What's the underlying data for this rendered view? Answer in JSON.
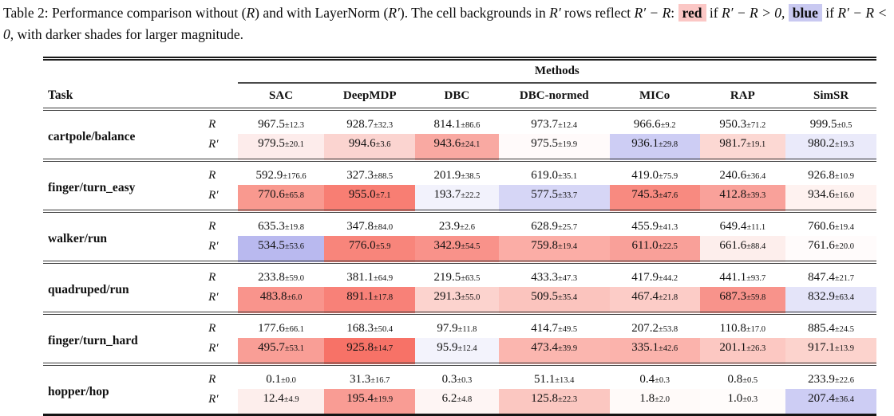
{
  "caption": {
    "segments": [
      {
        "t": "Table 2: ",
        "name": "caption-label"
      },
      {
        "t": "Performance comparison without ("
      },
      {
        "t": "R",
        "i": 1
      },
      {
        "t": ") and with LayerNorm ("
      },
      {
        "t": "R′",
        "i": 1
      },
      {
        "t": "). The cell backgrounds in "
      },
      {
        "t": "R′",
        "i": 1
      },
      {
        "t": " rows reflect "
      },
      {
        "t": "R′ − R",
        "i": 1
      },
      {
        "t": ":  "
      },
      {
        "t": "red",
        "b": 1,
        "hl": "#fbc7c5",
        "name": "red-legend-swatch"
      },
      {
        "t": " if "
      },
      {
        "t": "R′ − R > 0",
        "i": 1
      },
      {
        "t": ",  "
      },
      {
        "t": "blue",
        "b": 1,
        "hl": "#c9c9f1",
        "name": "blue-legend-swatch"
      },
      {
        "t": " if "
      },
      {
        "t": "R′ − R < 0",
        "i": 1
      },
      {
        "t": ", with darker shades for larger magnitude."
      }
    ]
  },
  "table": {
    "methods_label": "Methods",
    "task_label": "Task",
    "row_labels": [
      "R",
      "R′"
    ],
    "methods": [
      "SAC",
      "DeepMDP",
      "DBC",
      "DBC-normed",
      "MICo",
      "RAP",
      "SimSR"
    ],
    "groups": [
      {
        "task": "cartpole/balance",
        "r": [
          [
            "967.5",
            "12.3"
          ],
          [
            "928.7",
            "32.3"
          ],
          [
            "814.1",
            "86.6"
          ],
          [
            "973.7",
            "12.4"
          ],
          [
            "966.6",
            "9.2"
          ],
          [
            "950.3",
            "71.2"
          ],
          [
            "999.5",
            "0.5"
          ]
        ],
        "rp": [
          [
            "979.5",
            "20.1",
            "#fdeceb"
          ],
          [
            "994.6",
            "3.6",
            "#fbd4d0"
          ],
          [
            "943.6",
            "24.1",
            "#f9a9a2"
          ],
          [
            "975.5",
            "19.9",
            "#fffafa"
          ],
          [
            "936.1",
            "29.8",
            "#cdcdf4"
          ],
          [
            "981.7",
            "19.1",
            "#fcd8d3"
          ],
          [
            "980.2",
            "19.3",
            "#eaeafa"
          ]
        ]
      },
      {
        "task": "finger/turn_easy",
        "r": [
          [
            "592.9",
            "176.6"
          ],
          [
            "327.3",
            "88.5"
          ],
          [
            "201.9",
            "38.5"
          ],
          [
            "619.0",
            "35.1"
          ],
          [
            "419.0",
            "75.9"
          ],
          [
            "240.6",
            "36.4"
          ],
          [
            "926.8",
            "10.9"
          ]
        ],
        "rp": [
          [
            "770.6",
            "65.8",
            "#f9998f"
          ],
          [
            "955.0",
            "7.1",
            "#f87e73"
          ],
          [
            "193.7",
            "22.2",
            "#f2f2fc"
          ],
          [
            "577.5",
            "33.7",
            "#d6d6f6"
          ],
          [
            "745.3",
            "47.6",
            "#f88a80"
          ],
          [
            "412.8",
            "39.3",
            "#f9a19a"
          ],
          [
            "934.6",
            "16.0",
            "#fef2f0"
          ]
        ]
      },
      {
        "task": "walker/run",
        "r": [
          [
            "635.3",
            "19.8"
          ],
          [
            "347.8",
            "84.0"
          ],
          [
            "23.9",
            "2.6"
          ],
          [
            "628.9",
            "25.7"
          ],
          [
            "455.9",
            "41.3"
          ],
          [
            "649.4",
            "11.1"
          ],
          [
            "760.6",
            "19.4"
          ]
        ],
        "rp": [
          [
            "534.5",
            "53.6",
            "#b9b9ef"
          ],
          [
            "776.0",
            "5.9",
            "#f8857b"
          ],
          [
            "342.9",
            "54.5",
            "#f9928a"
          ],
          [
            "759.8",
            "19.4",
            "#fbada6"
          ],
          [
            "611.0",
            "22.5",
            "#f9a099"
          ],
          [
            "661.6",
            "88.4",
            "#fdeeec"
          ],
          [
            "761.6",
            "20.0",
            "#fffbfb"
          ]
        ]
      },
      {
        "task": "quadruped/run",
        "r": [
          [
            "233.8",
            "59.0"
          ],
          [
            "381.1",
            "64.9"
          ],
          [
            "219.5",
            "63.5"
          ],
          [
            "433.3",
            "47.3"
          ],
          [
            "417.9",
            "44.2"
          ],
          [
            "441.1",
            "93.7"
          ],
          [
            "847.4",
            "21.7"
          ]
        ],
        "rp": [
          [
            "483.8",
            "6.0",
            "#f9948c"
          ],
          [
            "891.1",
            "17.8",
            "#f88178"
          ],
          [
            "291.3",
            "55.0",
            "#fcd3ce"
          ],
          [
            "509.5",
            "35.4",
            "#fbc4be"
          ],
          [
            "467.4",
            "21.8",
            "#fcccc7"
          ],
          [
            "687.3",
            "59.8",
            "#f8938b"
          ],
          [
            "832.9",
            "63.4",
            "#e4e4f9"
          ]
        ]
      },
      {
        "task": "finger/turn_hard",
        "r": [
          [
            "177.6",
            "66.1"
          ],
          [
            "168.3",
            "50.4"
          ],
          [
            "97.9",
            "11.8"
          ],
          [
            "414.7",
            "49.5"
          ],
          [
            "207.2",
            "53.8"
          ],
          [
            "110.8",
            "17.0"
          ],
          [
            "885.4",
            "24.5"
          ]
        ],
        "rp": [
          [
            "495.7",
            "53.1",
            "#f99e96"
          ],
          [
            "925.8",
            "14.7",
            "#f77267"
          ],
          [
            "95.9",
            "12.4",
            "#f3f3fc"
          ],
          [
            "473.4",
            "39.9",
            "#fbb6af"
          ],
          [
            "335.1",
            "42.6",
            "#fbb3ac"
          ],
          [
            "201.1",
            "26.3",
            "#fcc8c2"
          ],
          [
            "917.1",
            "13.9",
            "#fcd3cd"
          ]
        ]
      },
      {
        "task": "hopper/hop",
        "r": [
          [
            "0.1",
            "0.0"
          ],
          [
            "31.3",
            "16.7"
          ],
          [
            "0.3",
            "0.3"
          ],
          [
            "51.1",
            "13.4"
          ],
          [
            "0.4",
            "0.3"
          ],
          [
            "0.8",
            "0.5"
          ],
          [
            "233.9",
            "22.6"
          ]
        ],
        "rp": [
          [
            "12.4",
            "4.9",
            "#fdeeec"
          ],
          [
            "195.4",
            "19.9",
            "#f99c94"
          ],
          [
            "6.2",
            "4.8",
            "#fef5f4"
          ],
          [
            "125.8",
            "22.3",
            "#fbc7c1"
          ],
          [
            "1.8",
            "2.0",
            "#fffaf9"
          ],
          [
            "1.0",
            "0.3",
            "#fffcfb"
          ],
          [
            "207.4",
            "36.4",
            "#cdcdf4"
          ]
        ]
      }
    ]
  }
}
